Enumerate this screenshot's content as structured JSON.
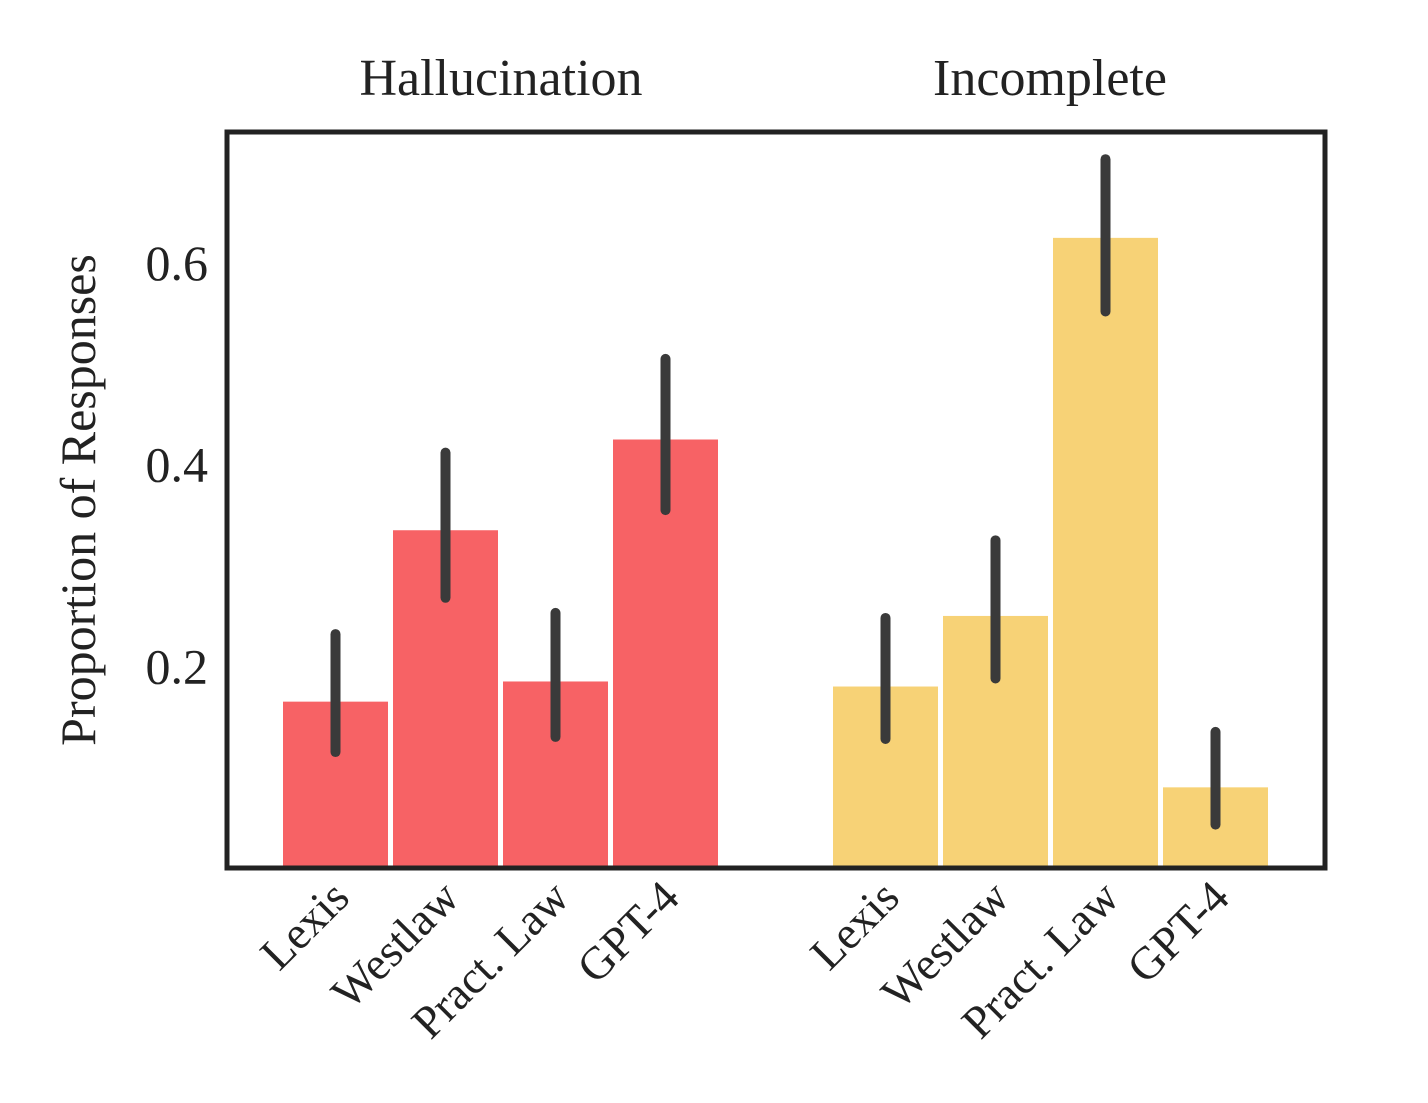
{
  "chart_data": {
    "type": "bar",
    "ylabel": "Proportion of Responses",
    "y_ticks": [
      0.2,
      0.4,
      0.6
    ],
    "y_tick_labels": [
      "0.2",
      "0.4",
      "0.6"
    ],
    "ylim": [
      0.0,
      0.73
    ],
    "grid": false,
    "groups": [
      {
        "title": "Hallucination",
        "color": "#f76265",
        "categories": [
          "Lexis",
          "Westlaw",
          "Pract. Law",
          "GPT-4"
        ],
        "values": [
          0.165,
          0.335,
          0.185,
          0.425
        ],
        "err_low": [
          0.115,
          0.268,
          0.13,
          0.355
        ],
        "err_high": [
          0.232,
          0.412,
          0.253,
          0.505
        ]
      },
      {
        "title": "Incomplete",
        "color": "#f7d276",
        "categories": [
          "Lexis",
          "Westlaw",
          "Pract. Law",
          "GPT-4"
        ],
        "values": [
          0.18,
          0.25,
          0.625,
          0.08
        ],
        "err_low": [
          0.128,
          0.188,
          0.552,
          0.043
        ],
        "err_high": [
          0.248,
          0.325,
          0.703,
          0.135
        ]
      }
    ]
  }
}
